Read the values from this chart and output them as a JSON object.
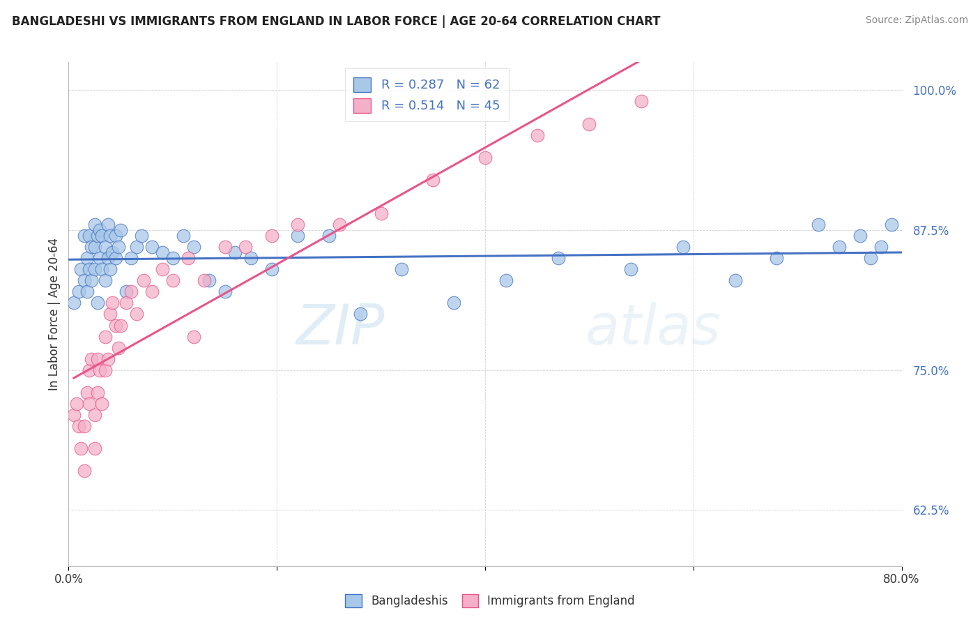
{
  "title": "BANGLADESHI VS IMMIGRANTS FROM ENGLAND IN LABOR FORCE | AGE 20-64 CORRELATION CHART",
  "source": "Source: ZipAtlas.com",
  "ylabel": "In Labor Force | Age 20-64",
  "xlabel_bangladeshi": "Bangladeshis",
  "xlabel_england": "Immigrants from England",
  "xlim": [
    0.0,
    0.8
  ],
  "ylim": [
    0.575,
    1.025
  ],
  "yticks": [
    0.625,
    0.75,
    0.875,
    1.0
  ],
  "yticklabels": [
    "62.5%",
    "75.0%",
    "87.5%",
    "100.0%"
  ],
  "r_bangladeshi": 0.287,
  "n_bangladeshi": 62,
  "r_england": 0.514,
  "n_england": 45,
  "color_bangladeshi": "#a8c8e8",
  "color_england": "#f4b0c8",
  "line_color_bangladeshi": "#4472c4",
  "line_color_england": "#e8558a",
  "watermark_zip": "ZIP",
  "watermark_atlas": "atlas",
  "bangladeshi_x": [
    0.005,
    0.01,
    0.012,
    0.015,
    0.015,
    0.018,
    0.018,
    0.02,
    0.02,
    0.022,
    0.022,
    0.025,
    0.025,
    0.025,
    0.028,
    0.028,
    0.03,
    0.03,
    0.032,
    0.032,
    0.035,
    0.035,
    0.038,
    0.038,
    0.04,
    0.04,
    0.042,
    0.045,
    0.045,
    0.048,
    0.05,
    0.055,
    0.06,
    0.065,
    0.07,
    0.08,
    0.09,
    0.1,
    0.11,
    0.12,
    0.135,
    0.15,
    0.16,
    0.175,
    0.195,
    0.22,
    0.25,
    0.28,
    0.32,
    0.37,
    0.42,
    0.47,
    0.54,
    0.59,
    0.64,
    0.68,
    0.72,
    0.74,
    0.76,
    0.77,
    0.78,
    0.79
  ],
  "bangladeshi_y": [
    0.81,
    0.82,
    0.84,
    0.83,
    0.87,
    0.82,
    0.85,
    0.84,
    0.87,
    0.86,
    0.83,
    0.84,
    0.86,
    0.88,
    0.81,
    0.87,
    0.85,
    0.875,
    0.84,
    0.87,
    0.83,
    0.86,
    0.85,
    0.88,
    0.84,
    0.87,
    0.855,
    0.85,
    0.87,
    0.86,
    0.875,
    0.82,
    0.85,
    0.86,
    0.87,
    0.86,
    0.855,
    0.85,
    0.87,
    0.86,
    0.83,
    0.82,
    0.855,
    0.85,
    0.84,
    0.87,
    0.87,
    0.8,
    0.84,
    0.81,
    0.83,
    0.85,
    0.84,
    0.86,
    0.83,
    0.85,
    0.88,
    0.86,
    0.87,
    0.85,
    0.86,
    0.88
  ],
  "england_x": [
    0.005,
    0.008,
    0.01,
    0.012,
    0.015,
    0.015,
    0.018,
    0.02,
    0.02,
    0.022,
    0.025,
    0.025,
    0.028,
    0.028,
    0.03,
    0.032,
    0.035,
    0.035,
    0.038,
    0.04,
    0.042,
    0.045,
    0.048,
    0.05,
    0.055,
    0.06,
    0.065,
    0.072,
    0.08,
    0.09,
    0.1,
    0.115,
    0.13,
    0.15,
    0.17,
    0.195,
    0.22,
    0.26,
    0.3,
    0.35,
    0.4,
    0.45,
    0.5,
    0.55,
    0.12
  ],
  "england_y": [
    0.71,
    0.72,
    0.7,
    0.68,
    0.66,
    0.7,
    0.73,
    0.72,
    0.75,
    0.76,
    0.68,
    0.71,
    0.73,
    0.76,
    0.75,
    0.72,
    0.75,
    0.78,
    0.76,
    0.8,
    0.81,
    0.79,
    0.77,
    0.79,
    0.81,
    0.82,
    0.8,
    0.83,
    0.82,
    0.84,
    0.83,
    0.85,
    0.83,
    0.86,
    0.86,
    0.87,
    0.88,
    0.88,
    0.89,
    0.92,
    0.94,
    0.96,
    0.97,
    0.99,
    0.78
  ]
}
